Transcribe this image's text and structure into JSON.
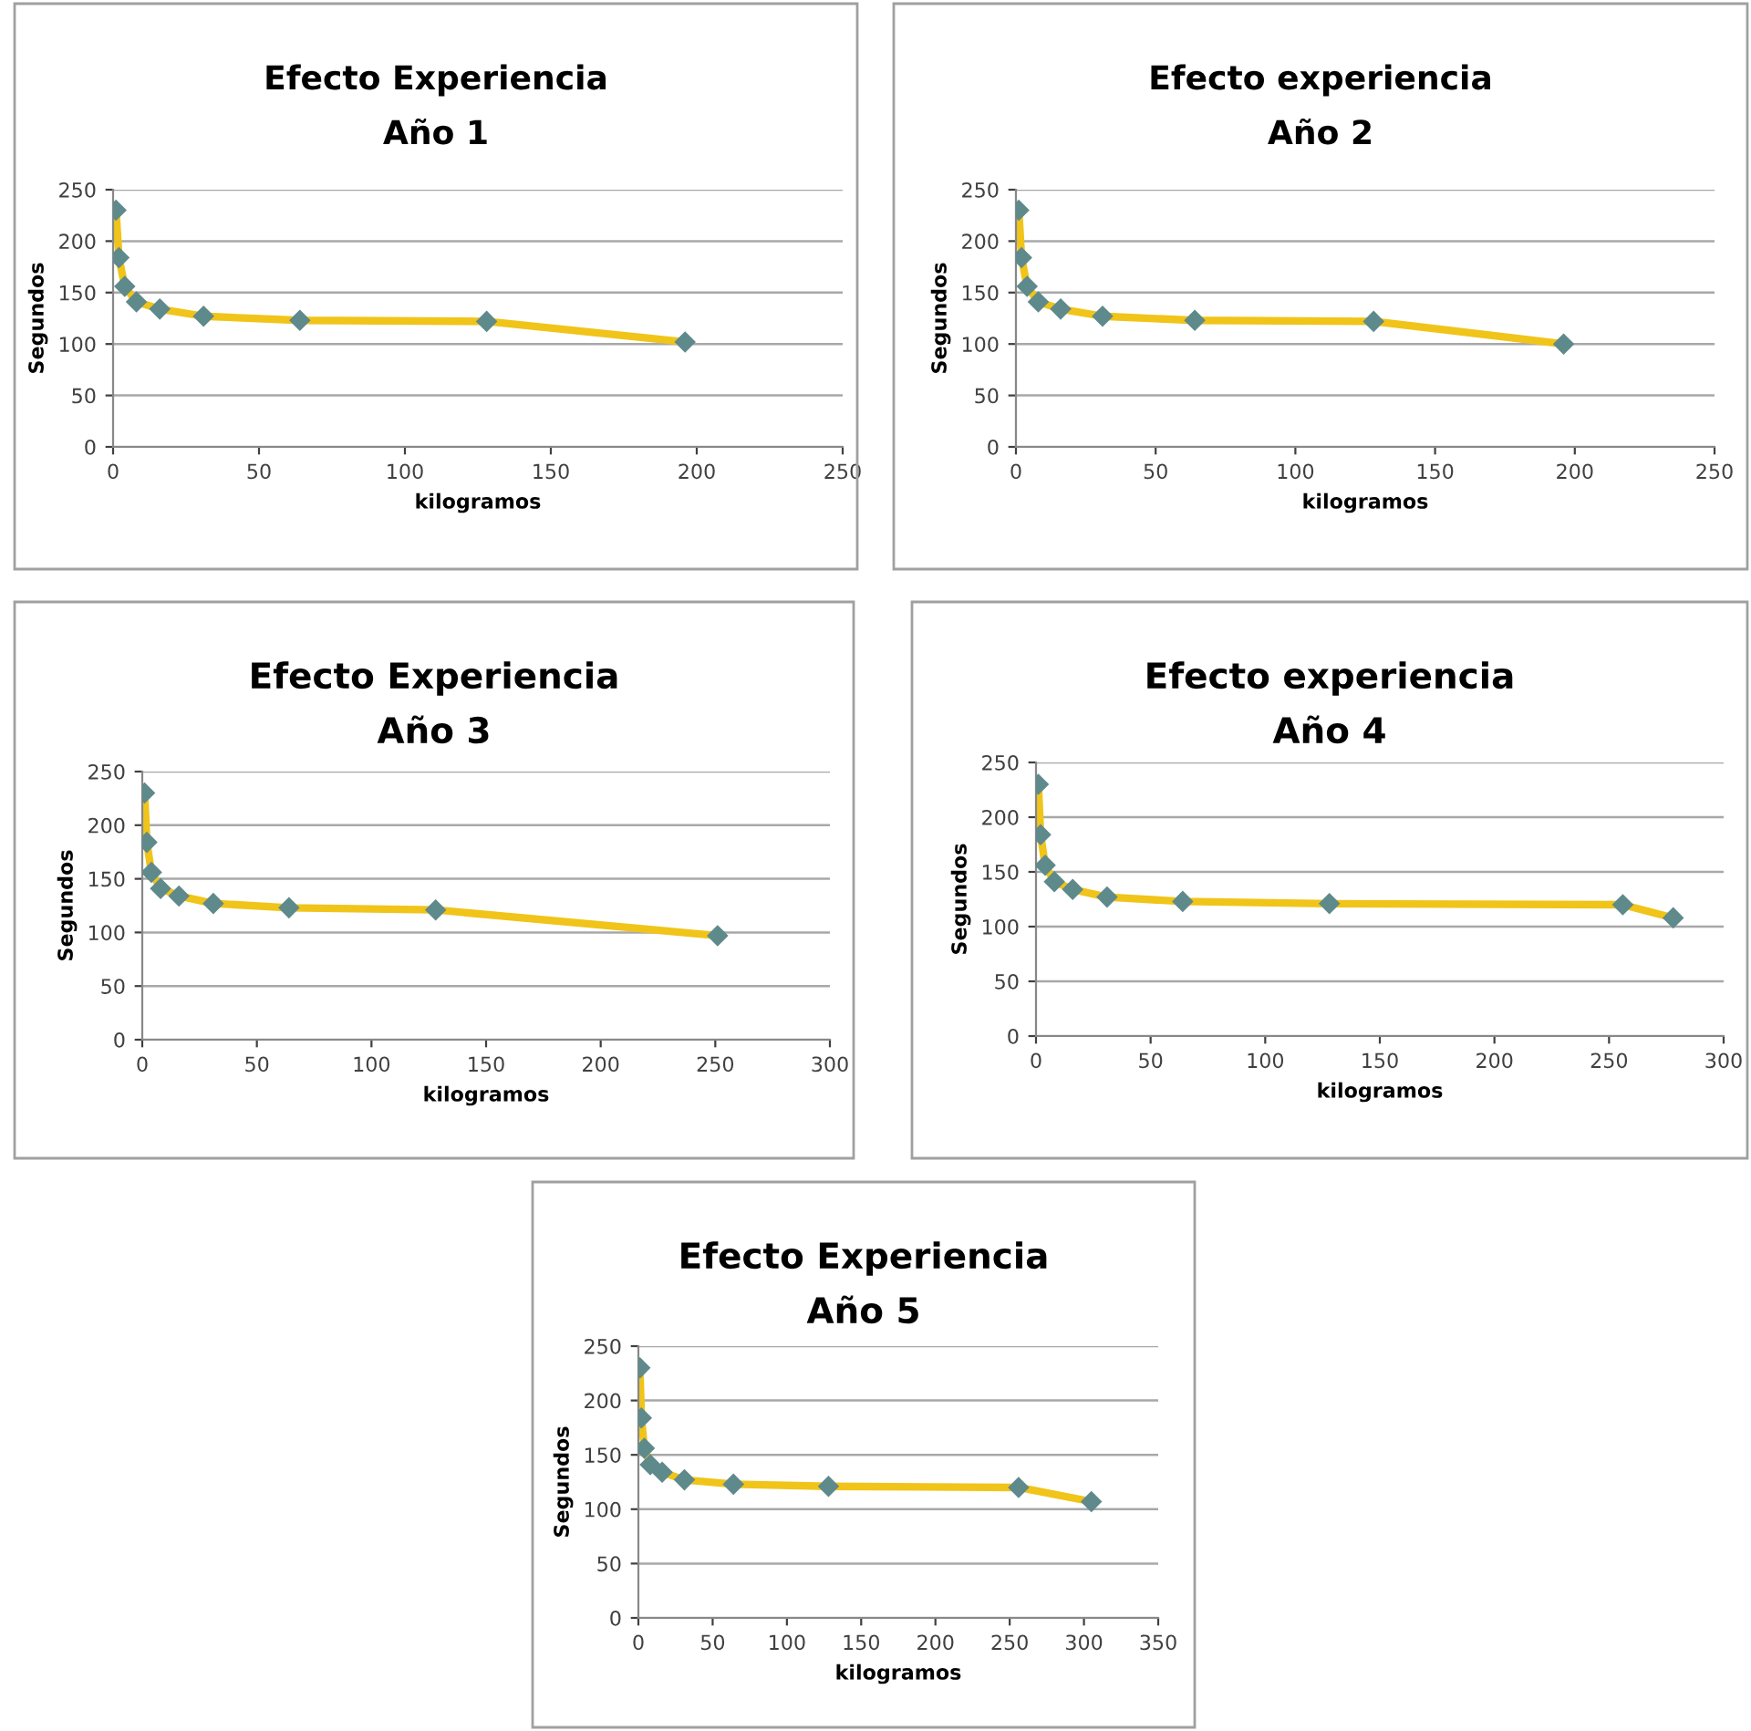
{
  "chart_data": [
    {
      "type": "line",
      "title": "Efecto Experiencia",
      "subtitle": "Año 1",
      "xlabel": "kilogramos",
      "ylabel": "Segundos",
      "xlim": [
        0,
        250
      ],
      "xticks": [
        0,
        50,
        100,
        150,
        200,
        250
      ],
      "ylim": [
        0,
        250
      ],
      "yticks": [
        0,
        50,
        100,
        150,
        200,
        250
      ],
      "grid": "y",
      "legend": false,
      "marker": "diamond",
      "line_style": "solid",
      "series": [
        {
          "color": "#f0c419",
          "x": [
            1,
            2,
            4,
            8,
            16,
            31,
            64,
            128,
            196
          ],
          "values": [
            230,
            184,
            156,
            141,
            134,
            127,
            123,
            122,
            102
          ]
        }
      ]
    },
    {
      "type": "line",
      "title": "Efecto experiencia",
      "subtitle": "Año 2",
      "xlabel": "kilogramos",
      "ylabel": "Segundos",
      "xlim": [
        0,
        250
      ],
      "xticks": [
        0,
        50,
        100,
        150,
        200,
        250
      ],
      "ylim": [
        0,
        250
      ],
      "yticks": [
        0,
        50,
        100,
        150,
        200,
        250
      ],
      "grid": "y",
      "legend": false,
      "marker": "diamond",
      "line_style": "solid",
      "series": [
        {
          "color": "#f0c419",
          "x": [
            1,
            2,
            4,
            8,
            16,
            31,
            64,
            128,
            196
          ],
          "values": [
            230,
            184,
            156,
            141,
            134,
            127,
            123,
            122,
            100
          ]
        }
      ]
    },
    {
      "type": "line",
      "title": "Efecto Experiencia",
      "subtitle": "Año 3",
      "xlabel": "kilogramos",
      "ylabel": "Segundos",
      "xlim": [
        0,
        300
      ],
      "xticks": [
        0,
        50,
        100,
        150,
        200,
        250,
        300
      ],
      "ylim": [
        0,
        250
      ],
      "yticks": [
        0,
        50,
        100,
        150,
        200,
        250
      ],
      "grid": "y",
      "legend": false,
      "marker": "diamond",
      "line_style": "solid",
      "series": [
        {
          "color": "#f0c419",
          "x": [
            1,
            2,
            4,
            8,
            16,
            31,
            64,
            128,
            251
          ],
          "values": [
            230,
            184,
            156,
            141,
            134,
            127,
            123,
            121,
            97
          ]
        }
      ]
    },
    {
      "type": "line",
      "title": "Efecto experiencia",
      "subtitle": "Año 4",
      "xlabel": "kilogramos",
      "ylabel": "Segundos",
      "xlim": [
        0,
        300
      ],
      "xticks": [
        0,
        50,
        100,
        150,
        200,
        250,
        300
      ],
      "ylim": [
        0,
        250
      ],
      "yticks": [
        0,
        50,
        100,
        150,
        200,
        250
      ],
      "grid": "y",
      "legend": false,
      "marker": "diamond",
      "line_style": "solid",
      "series": [
        {
          "color": "#f0c419",
          "x": [
            1,
            2,
            4,
            8,
            16,
            31,
            64,
            128,
            256,
            278
          ],
          "values": [
            230,
            184,
            156,
            141,
            134,
            127,
            123,
            121,
            120,
            108
          ]
        }
      ]
    },
    {
      "type": "line",
      "title": "Efecto Experiencia",
      "subtitle": "Año 5",
      "xlabel": "kilogramos",
      "ylabel": "Segundos",
      "xlim": [
        0,
        350
      ],
      "xticks": [
        0,
        50,
        100,
        150,
        200,
        250,
        300,
        350
      ],
      "ylim": [
        0,
        250
      ],
      "yticks": [
        0,
        50,
        100,
        150,
        200,
        250
      ],
      "grid": "y",
      "legend": false,
      "marker": "diamond",
      "line_style": "solid",
      "series": [
        {
          "color": "#f0c419",
          "x": [
            1,
            2,
            4,
            8,
            16,
            31,
            64,
            128,
            256,
            305
          ],
          "values": [
            230,
            184,
            156,
            141,
            134,
            127,
            123,
            121,
            120,
            107
          ]
        }
      ]
    }
  ]
}
